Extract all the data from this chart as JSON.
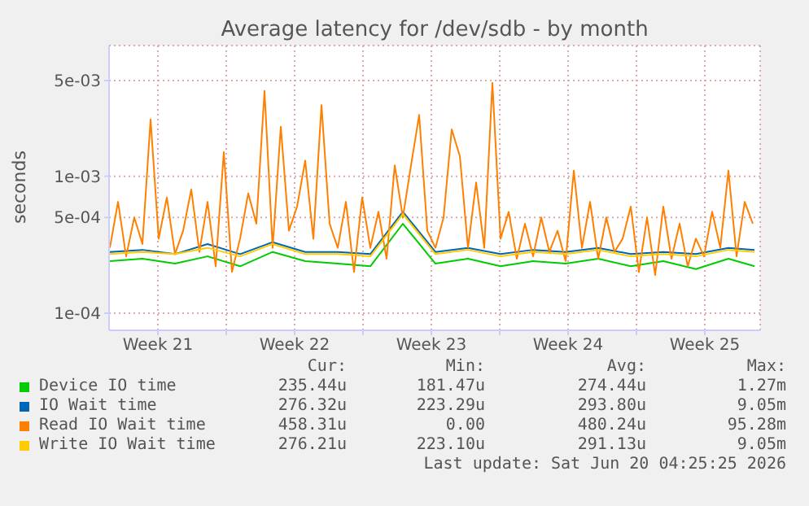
{
  "chart_data": {
    "type": "line",
    "title": "Average latency for /dev/sdb - by month",
    "ylabel": "seconds",
    "log": "y",
    "grid": true,
    "legend": "bottom",
    "marker": "none",
    "line_style": "solid",
    "xlim": [
      "2026-05-19T00:00",
      "2026-06-21T08:00"
    ],
    "xticks": [
      {
        "value": "2026-05-21T12:00",
        "label": "Week 21"
      },
      {
        "value": "2026-05-25",
        "label": null
      },
      {
        "value": "2026-05-28T12:00",
        "label": "Week 22"
      },
      {
        "value": "2026-06-01",
        "label": null
      },
      {
        "value": "2026-06-04T12:00",
        "label": "Week 23"
      },
      {
        "value": "2026-06-08",
        "label": null
      },
      {
        "value": "2026-06-11T12:00",
        "label": "Week 24"
      },
      {
        "value": "2026-06-15",
        "label": null
      },
      {
        "value": "2026-06-18T12:00",
        "label": "Week 25"
      }
    ],
    "ylim": [
      7.5e-05,
      0.009
    ],
    "yticks": [
      {
        "value": 0.0001,
        "label": "1e-04"
      },
      {
        "value": 0.0005,
        "label": "5e-04"
      },
      {
        "value": 0.001,
        "label": "1e-03"
      },
      {
        "value": 0.005,
        "label": "5e-03"
      }
    ],
    "annotations": [
      "Cur:",
      "Min:",
      "Avg:",
      "Max:",
      "235.44u",
      "181.47u",
      "274.44u",
      "1.27m",
      "276.32u",
      "223.29u",
      "293.80u",
      "9.05m",
      "458.31u",
      "0.00",
      "480.24u",
      "95.28m",
      "276.21u",
      "223.10u",
      "291.13u",
      "9.05m",
      "Last update: Sat Jun 20 04:25:25 2026"
    ],
    "series": [
      {
        "name": "Device IO time",
        "color": "#00cc00",
        "x": [
          "2026-05-19T01:00",
          "2026-05-20T17:00",
          "2026-05-22T09:00",
          "2026-05-24T01:00",
          "2026-05-25T17:00",
          "2026-05-27T09:00",
          "2026-05-29T01:00",
          "2026-05-30T17:00",
          "2026-06-01T09:00",
          "2026-06-03T01:00",
          "2026-06-04T17:00",
          "2026-06-06T09:00",
          "2026-06-08T01:00",
          "2026-06-09T17:00",
          "2026-06-11T09:00",
          "2026-06-13T01:00",
          "2026-06-14T17:00",
          "2026-06-16T09:00",
          "2026-06-18T01:00",
          "2026-06-19T17:00",
          "2026-06-21T01:00"
        ],
        "values": [
          0.00024,
          0.00025,
          0.00023,
          0.00026,
          0.00022,
          0.00028,
          0.00024,
          0.00023,
          0.00022,
          0.00045,
          0.00023,
          0.00025,
          0.00022,
          0.00024,
          0.00023,
          0.00025,
          0.00022,
          0.00024,
          0.00021,
          0.00025,
          0.00022
        ]
      },
      {
        "name": "IO Wait time",
        "color": "#0066b3",
        "x": [
          "2026-05-19T01:00",
          "2026-05-20T17:00",
          "2026-05-22T09:00",
          "2026-05-24T01:00",
          "2026-05-25T17:00",
          "2026-05-27T09:00",
          "2026-05-29T01:00",
          "2026-05-30T17:00",
          "2026-06-01T09:00",
          "2026-06-03T01:00",
          "2026-06-04T17:00",
          "2026-06-06T09:00",
          "2026-06-08T01:00",
          "2026-06-09T17:00",
          "2026-06-11T09:00",
          "2026-06-13T01:00",
          "2026-06-14T17:00",
          "2026-06-16T09:00",
          "2026-06-18T01:00",
          "2026-06-19T17:00",
          "2026-06-21T01:00"
        ],
        "values": [
          0.00028,
          0.00029,
          0.00027,
          0.00032,
          0.00027,
          0.00033,
          0.00028,
          0.00028,
          0.00027,
          0.00055,
          0.00028,
          0.0003,
          0.00027,
          0.00029,
          0.00028,
          0.0003,
          0.00027,
          0.00028,
          0.00027,
          0.0003,
          0.00029
        ]
      },
      {
        "name": "Read IO Wait time",
        "color": "#ff8000",
        "x": [
          "2026-05-19T01:00",
          "2026-05-19T11:00",
          "2026-05-19T21:00",
          "2026-05-20T07:00",
          "2026-05-20T17:00",
          "2026-05-21T03:00",
          "2026-05-21T13:00",
          "2026-05-21T23:00",
          "2026-05-22T09:00",
          "2026-05-22T19:00",
          "2026-05-23T05:00",
          "2026-05-23T15:00",
          "2026-05-24T01:00",
          "2026-05-24T11:00",
          "2026-05-24T21:00",
          "2026-05-25T07:00",
          "2026-05-25T17:00",
          "2026-05-26T03:00",
          "2026-05-26T13:00",
          "2026-05-26T23:00",
          "2026-05-27T09:00",
          "2026-05-27T19:00",
          "2026-05-28T05:00",
          "2026-05-28T15:00",
          "2026-05-29T01:00",
          "2026-05-29T11:00",
          "2026-05-29T21:00",
          "2026-05-30T07:00",
          "2026-05-30T17:00",
          "2026-05-31T03:00",
          "2026-05-31T13:00",
          "2026-05-31T23:00",
          "2026-06-01T09:00",
          "2026-06-01T19:00",
          "2026-06-02T05:00",
          "2026-06-02T15:00",
          "2026-06-03T01:00",
          "2026-06-03T11:00",
          "2026-06-03T21:00",
          "2026-06-04T07:00",
          "2026-06-04T17:00",
          "2026-06-05T03:00",
          "2026-06-05T13:00",
          "2026-06-05T23:00",
          "2026-06-06T09:00",
          "2026-06-06T19:00",
          "2026-06-07T05:00",
          "2026-06-07T15:00",
          "2026-06-08T01:00",
          "2026-06-08T11:00",
          "2026-06-08T21:00",
          "2026-06-09T07:00",
          "2026-06-09T17:00",
          "2026-06-10T03:00",
          "2026-06-10T13:00",
          "2026-06-10T23:00",
          "2026-06-11T09:00",
          "2026-06-11T19:00",
          "2026-06-12T05:00",
          "2026-06-12T15:00",
          "2026-06-13T01:00",
          "2026-06-13T11:00",
          "2026-06-13T21:00",
          "2026-06-14T07:00",
          "2026-06-14T17:00",
          "2026-06-15T03:00",
          "2026-06-15T13:00",
          "2026-06-15T23:00",
          "2026-06-16T09:00",
          "2026-06-16T19:00",
          "2026-06-17T05:00",
          "2026-06-17T15:00",
          "2026-06-18T01:00",
          "2026-06-18T11:00",
          "2026-06-18T21:00",
          "2026-06-19T07:00",
          "2026-06-19T17:00",
          "2026-06-20T03:00",
          "2026-06-20T13:00",
          "2026-06-20T23:00"
        ],
        "values": [
          0.0003,
          0.00065,
          0.00026,
          0.0005,
          0.00032,
          0.0026,
          0.00035,
          0.0007,
          0.00027,
          0.0004,
          0.0008,
          0.00028,
          0.00065,
          0.00022,
          0.0015,
          0.0002,
          0.00035,
          0.00075,
          0.00045,
          0.0042,
          0.0003,
          0.0023,
          0.0004,
          0.0006,
          0.0013,
          0.00035,
          0.0033,
          0.00045,
          0.0003,
          0.00065,
          0.0002,
          0.0007,
          0.0003,
          0.00055,
          0.00025,
          0.0012,
          0.0005,
          0.0012,
          0.0028,
          0.0004,
          0.0003,
          0.0005,
          0.0022,
          0.0014,
          0.0003,
          0.0009,
          0.0003,
          0.0048,
          0.00035,
          0.00055,
          0.00025,
          0.00045,
          0.00026,
          0.0005,
          0.00028,
          0.0004,
          0.00024,
          0.0011,
          0.0003,
          0.00065,
          0.00025,
          0.0005,
          0.00028,
          0.00035,
          0.0006,
          0.0002,
          0.0005,
          0.00019,
          0.0006,
          0.00025,
          0.00045,
          0.00022,
          0.00035,
          0.00026,
          0.00055,
          0.0003,
          0.0011,
          0.00026,
          0.00065,
          0.00045
        ]
      },
      {
        "name": "Write IO Wait time",
        "color": "#ffcc00",
        "x": [
          "2026-05-19T01:00",
          "2026-05-20T17:00",
          "2026-05-22T09:00",
          "2026-05-24T01:00",
          "2026-05-25T17:00",
          "2026-05-27T09:00",
          "2026-05-29T01:00",
          "2026-05-30T17:00",
          "2026-06-01T09:00",
          "2026-06-03T01:00",
          "2026-06-04T17:00",
          "2026-06-06T09:00",
          "2026-06-08T01:00",
          "2026-06-09T17:00",
          "2026-06-11T09:00",
          "2026-06-13T01:00",
          "2026-06-14T17:00",
          "2026-06-16T09:00",
          "2026-06-18T01:00",
          "2026-06-19T17:00",
          "2026-06-21T01:00"
        ],
        "values": [
          0.00027,
          0.00028,
          0.00027,
          0.0003,
          0.00026,
          0.00032,
          0.00027,
          0.00027,
          0.00026,
          0.00053,
          0.00027,
          0.00029,
          0.00026,
          0.00028,
          0.00027,
          0.00029,
          0.00026,
          0.00027,
          0.00026,
          0.00029,
          0.00028
        ]
      }
    ]
  }
}
